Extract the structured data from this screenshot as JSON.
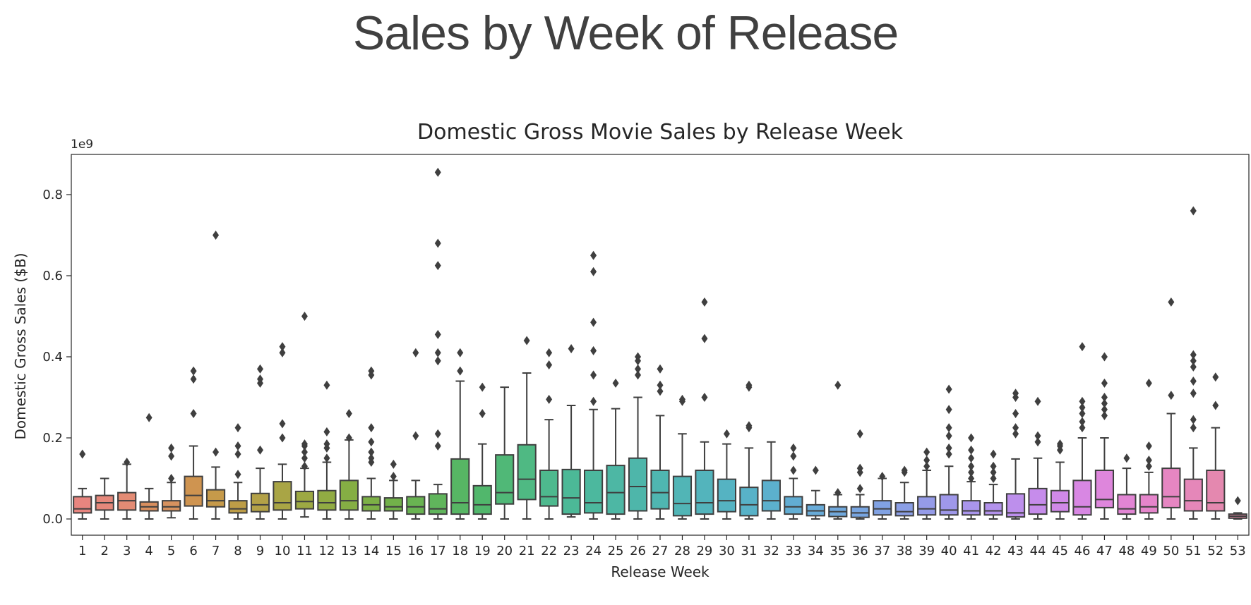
{
  "slide": {
    "title": "Sales by Week of Release"
  },
  "chart_data": {
    "type": "box",
    "title": "Domestic Gross Movie Sales by Release Week",
    "xlabel": "Release Week",
    "ylabel": "Domestic Gross Sales ($B)",
    "y_scale_label": "1e9",
    "ylim": [
      -0.04,
      0.89
    ],
    "yticks": [
      0.0,
      0.2,
      0.4,
      0.6,
      0.8
    ],
    "ytick_labels": [
      "0.0",
      "0.2",
      "0.4",
      "0.6",
      "0.8"
    ],
    "grid": false,
    "legend": "none",
    "categories": [
      "1",
      "2",
      "3",
      "4",
      "5",
      "6",
      "7",
      "8",
      "9",
      "10",
      "11",
      "12",
      "13",
      "14",
      "15",
      "16",
      "17",
      "18",
      "19",
      "20",
      "21",
      "22",
      "23",
      "24",
      "25",
      "26",
      "27",
      "28",
      "29",
      "30",
      "31",
      "32",
      "33",
      "34",
      "35",
      "36",
      "37",
      "38",
      "39",
      "40",
      "41",
      "42",
      "43",
      "44",
      "45",
      "46",
      "47",
      "48",
      "49",
      "50",
      "51",
      "52",
      "53"
    ],
    "colors": [
      "#e8857f",
      "#e6887b",
      "#e38b74",
      "#d98f5e",
      "#d7925f",
      "#cf9450",
      "#c69a4a",
      "#bd9d47",
      "#b3a147",
      "#a9a545",
      "#9da943",
      "#91ab43",
      "#85ae44",
      "#7cb046",
      "#72b14a",
      "#69b352",
      "#60b55c",
      "#57b664",
      "#51b76c",
      "#50b877",
      "#4fb983",
      "#4eb98e",
      "#4cb997",
      "#4cb89e",
      "#4db7a4",
      "#4eb6aa",
      "#4fb6b1",
      "#51b5b6",
      "#53b4bc",
      "#55b3c2",
      "#58b2c8",
      "#5cb0cd",
      "#62add3",
      "#68abd8",
      "#70a8dc",
      "#78a5e0",
      "#81a2e3",
      "#8b9fe6",
      "#959be8",
      "#9f98ea",
      "#a995ec",
      "#b392ec",
      "#bd8fec",
      "#c68ceb",
      "#d089e8",
      "#d887e3",
      "#de86dc",
      "#e285d4",
      "#e585cb",
      "#e686c2",
      "#e587b9",
      "#e488af",
      "#e389a6"
    ],
    "boxes": [
      {
        "week": "1",
        "low": 0.0,
        "q1": 0.015,
        "median": 0.025,
        "q3": 0.055,
        "high": 0.075,
        "outliers": [
          0.16
        ]
      },
      {
        "week": "2",
        "low": 0.0,
        "q1": 0.022,
        "median": 0.04,
        "q3": 0.058,
        "high": 0.1,
        "outliers": []
      },
      {
        "week": "3",
        "low": 0.0,
        "q1": 0.022,
        "median": 0.045,
        "q3": 0.065,
        "high": 0.135,
        "outliers": [
          0.14
        ]
      },
      {
        "week": "4",
        "low": 0.0,
        "q1": 0.02,
        "median": 0.03,
        "q3": 0.042,
        "high": 0.075,
        "outliers": [
          0.25
        ]
      },
      {
        "week": "5",
        "low": 0.003,
        "q1": 0.02,
        "median": 0.03,
        "q3": 0.045,
        "high": 0.09,
        "outliers": [
          0.1,
          0.155,
          0.175
        ]
      },
      {
        "week": "6",
        "low": 0.0,
        "q1": 0.032,
        "median": 0.058,
        "q3": 0.105,
        "high": 0.18,
        "outliers": [
          0.26,
          0.345,
          0.365
        ]
      },
      {
        "week": "7",
        "low": 0.0,
        "q1": 0.03,
        "median": 0.045,
        "q3": 0.072,
        "high": 0.128,
        "outliers": [
          0.165,
          0.7
        ]
      },
      {
        "week": "8",
        "low": 0.0,
        "q1": 0.015,
        "median": 0.025,
        "q3": 0.045,
        "high": 0.09,
        "outliers": [
          0.11,
          0.16,
          0.18,
          0.225
        ]
      },
      {
        "week": "9",
        "low": 0.0,
        "q1": 0.018,
        "median": 0.035,
        "q3": 0.063,
        "high": 0.125,
        "outliers": [
          0.17,
          0.335,
          0.345,
          0.37
        ]
      },
      {
        "week": "10",
        "low": 0.0,
        "q1": 0.022,
        "median": 0.04,
        "q3": 0.092,
        "high": 0.135,
        "outliers": [
          0.2,
          0.235,
          0.41,
          0.425
        ]
      },
      {
        "week": "11",
        "low": 0.005,
        "q1": 0.025,
        "median": 0.043,
        "q3": 0.068,
        "high": 0.125,
        "outliers": [
          0.13,
          0.15,
          0.165,
          0.18,
          0.185,
          0.5
        ]
      },
      {
        "week": "12",
        "low": 0.0,
        "q1": 0.022,
        "median": 0.04,
        "q3": 0.07,
        "high": 0.14,
        "outliers": [
          0.15,
          0.175,
          0.185,
          0.215,
          0.33
        ]
      },
      {
        "week": "13",
        "low": 0.0,
        "q1": 0.022,
        "median": 0.045,
        "q3": 0.095,
        "high": 0.195,
        "outliers": [
          0.2,
          0.26
        ]
      },
      {
        "week": "14",
        "low": 0.0,
        "q1": 0.02,
        "median": 0.035,
        "q3": 0.055,
        "high": 0.1,
        "outliers": [
          0.14,
          0.15,
          0.165,
          0.19,
          0.225,
          0.355,
          0.365
        ]
      },
      {
        "week": "15",
        "low": 0.0,
        "q1": 0.02,
        "median": 0.03,
        "q3": 0.052,
        "high": 0.095,
        "outliers": [
          0.105,
          0.135
        ]
      },
      {
        "week": "16",
        "low": 0.0,
        "q1": 0.012,
        "median": 0.03,
        "q3": 0.055,
        "high": 0.095,
        "outliers": [
          0.205,
          0.41
        ]
      },
      {
        "week": "17",
        "low": 0.0,
        "q1": 0.012,
        "median": 0.025,
        "q3": 0.062,
        "high": 0.085,
        "outliers": [
          0.18,
          0.21,
          0.39,
          0.41,
          0.455,
          0.625,
          0.68,
          0.855
        ]
      },
      {
        "week": "18",
        "low": 0.0,
        "q1": 0.012,
        "median": 0.04,
        "q3": 0.148,
        "high": 0.34,
        "outliers": [
          0.365,
          0.41
        ]
      },
      {
        "week": "19",
        "low": 0.0,
        "q1": 0.012,
        "median": 0.035,
        "q3": 0.082,
        "high": 0.185,
        "outliers": [
          0.26,
          0.325
        ]
      },
      {
        "week": "20",
        "low": 0.0,
        "q1": 0.037,
        "median": 0.065,
        "q3": 0.158,
        "high": 0.325,
        "outliers": []
      },
      {
        "week": "21",
        "low": 0.0,
        "q1": 0.048,
        "median": 0.098,
        "q3": 0.183,
        "high": 0.36,
        "outliers": [
          0.44
        ]
      },
      {
        "week": "22",
        "low": 0.0,
        "q1": 0.032,
        "median": 0.055,
        "q3": 0.12,
        "high": 0.245,
        "outliers": [
          0.295,
          0.38,
          0.41
        ]
      },
      {
        "week": "23",
        "low": 0.005,
        "q1": 0.012,
        "median": 0.052,
        "q3": 0.122,
        "high": 0.28,
        "outliers": [
          0.42
        ]
      },
      {
        "week": "24",
        "low": 0.0,
        "q1": 0.015,
        "median": 0.04,
        "q3": 0.12,
        "high": 0.27,
        "outliers": [
          0.29,
          0.355,
          0.415,
          0.485,
          0.61,
          0.65
        ]
      },
      {
        "week": "25",
        "low": 0.0,
        "q1": 0.012,
        "median": 0.065,
        "q3": 0.132,
        "high": 0.272,
        "outliers": [
          0.335
        ]
      },
      {
        "week": "26",
        "low": 0.0,
        "q1": 0.02,
        "median": 0.08,
        "q3": 0.15,
        "high": 0.3,
        "outliers": [
          0.355,
          0.37,
          0.39,
          0.4
        ]
      },
      {
        "week": "27",
        "low": 0.0,
        "q1": 0.025,
        "median": 0.065,
        "q3": 0.12,
        "high": 0.255,
        "outliers": [
          0.315,
          0.33,
          0.37
        ]
      },
      {
        "week": "28",
        "low": 0.0,
        "q1": 0.008,
        "median": 0.038,
        "q3": 0.105,
        "high": 0.21,
        "outliers": [
          0.29,
          0.295
        ]
      },
      {
        "week": "29",
        "low": 0.0,
        "q1": 0.012,
        "median": 0.04,
        "q3": 0.12,
        "high": 0.19,
        "outliers": [
          0.3,
          0.445,
          0.535
        ]
      },
      {
        "week": "30",
        "low": 0.0,
        "q1": 0.018,
        "median": 0.045,
        "q3": 0.098,
        "high": 0.185,
        "outliers": [
          0.21
        ]
      },
      {
        "week": "31",
        "low": 0.0,
        "q1": 0.008,
        "median": 0.035,
        "q3": 0.078,
        "high": 0.175,
        "outliers": [
          0.225,
          0.23,
          0.325,
          0.33
        ]
      },
      {
        "week": "32",
        "low": 0.0,
        "q1": 0.02,
        "median": 0.045,
        "q3": 0.095,
        "high": 0.19,
        "outliers": []
      },
      {
        "week": "33",
        "low": 0.0,
        "q1": 0.012,
        "median": 0.03,
        "q3": 0.055,
        "high": 0.1,
        "outliers": [
          0.12,
          0.155,
          0.175
        ]
      },
      {
        "week": "34",
        "low": 0.0,
        "q1": 0.008,
        "median": 0.02,
        "q3": 0.035,
        "high": 0.07,
        "outliers": [
          0.12
        ]
      },
      {
        "week": "35",
        "low": 0.0,
        "q1": 0.006,
        "median": 0.018,
        "q3": 0.03,
        "high": 0.06,
        "outliers": [
          0.065,
          0.33
        ]
      },
      {
        "week": "36",
        "low": 0.0,
        "q1": 0.004,
        "median": 0.015,
        "q3": 0.03,
        "high": 0.06,
        "outliers": [
          0.075,
          0.115,
          0.125,
          0.21
        ]
      },
      {
        "week": "37",
        "low": 0.0,
        "q1": 0.01,
        "median": 0.025,
        "q3": 0.045,
        "high": 0.1,
        "outliers": [
          0.105
        ]
      },
      {
        "week": "38",
        "low": 0.0,
        "q1": 0.008,
        "median": 0.018,
        "q3": 0.04,
        "high": 0.09,
        "outliers": [
          0.115,
          0.12
        ]
      },
      {
        "week": "39",
        "low": 0.0,
        "q1": 0.01,
        "median": 0.025,
        "q3": 0.055,
        "high": 0.12,
        "outliers": [
          0.13,
          0.145,
          0.165
        ]
      },
      {
        "week": "40",
        "low": 0.0,
        "q1": 0.01,
        "median": 0.022,
        "q3": 0.06,
        "high": 0.13,
        "outliers": [
          0.16,
          0.175,
          0.205,
          0.225,
          0.27,
          0.32
        ]
      },
      {
        "week": "41",
        "low": 0.0,
        "q1": 0.01,
        "median": 0.02,
        "q3": 0.045,
        "high": 0.092,
        "outliers": [
          0.1,
          0.115,
          0.13,
          0.15,
          0.17,
          0.2
        ]
      },
      {
        "week": "42",
        "low": 0.0,
        "q1": 0.01,
        "median": 0.02,
        "q3": 0.04,
        "high": 0.085,
        "outliers": [
          0.1,
          0.115,
          0.13,
          0.16
        ]
      },
      {
        "week": "43",
        "low": 0.0,
        "q1": 0.005,
        "median": 0.015,
        "q3": 0.062,
        "high": 0.148,
        "outliers": [
          0.21,
          0.225,
          0.26,
          0.3,
          0.31
        ]
      },
      {
        "week": "44",
        "low": 0.0,
        "q1": 0.012,
        "median": 0.035,
        "q3": 0.075,
        "high": 0.15,
        "outliers": [
          0.19,
          0.205,
          0.29
        ]
      },
      {
        "week": "45",
        "low": 0.0,
        "q1": 0.018,
        "median": 0.04,
        "q3": 0.07,
        "high": 0.14,
        "outliers": [
          0.17,
          0.18,
          0.185
        ]
      },
      {
        "week": "46",
        "low": 0.0,
        "q1": 0.01,
        "median": 0.03,
        "q3": 0.095,
        "high": 0.2,
        "outliers": [
          0.225,
          0.24,
          0.26,
          0.275,
          0.29,
          0.425
        ]
      },
      {
        "week": "47",
        "low": 0.0,
        "q1": 0.028,
        "median": 0.048,
        "q3": 0.12,
        "high": 0.2,
        "outliers": [
          0.255,
          0.27,
          0.285,
          0.3,
          0.335,
          0.4
        ]
      },
      {
        "week": "48",
        "low": 0.0,
        "q1": 0.012,
        "median": 0.025,
        "q3": 0.06,
        "high": 0.125,
        "outliers": [
          0.15
        ]
      },
      {
        "week": "49",
        "low": 0.0,
        "q1": 0.015,
        "median": 0.03,
        "q3": 0.06,
        "high": 0.115,
        "outliers": [
          0.13,
          0.145,
          0.18,
          0.335
        ]
      },
      {
        "week": "50",
        "low": 0.0,
        "q1": 0.028,
        "median": 0.055,
        "q3": 0.125,
        "high": 0.26,
        "outliers": [
          0.305,
          0.535
        ]
      },
      {
        "week": "51",
        "low": 0.0,
        "q1": 0.02,
        "median": 0.045,
        "q3": 0.098,
        "high": 0.175,
        "outliers": [
          0.225,
          0.245,
          0.31,
          0.34,
          0.375,
          0.39,
          0.405,
          0.76
        ]
      },
      {
        "week": "52",
        "low": 0.0,
        "q1": 0.02,
        "median": 0.04,
        "q3": 0.12,
        "high": 0.225,
        "outliers": [
          0.28,
          0.35
        ]
      },
      {
        "week": "53",
        "low": 0.0,
        "q1": 0.002,
        "median": 0.007,
        "q3": 0.012,
        "high": 0.015,
        "outliers": [
          0.045
        ]
      }
    ]
  }
}
